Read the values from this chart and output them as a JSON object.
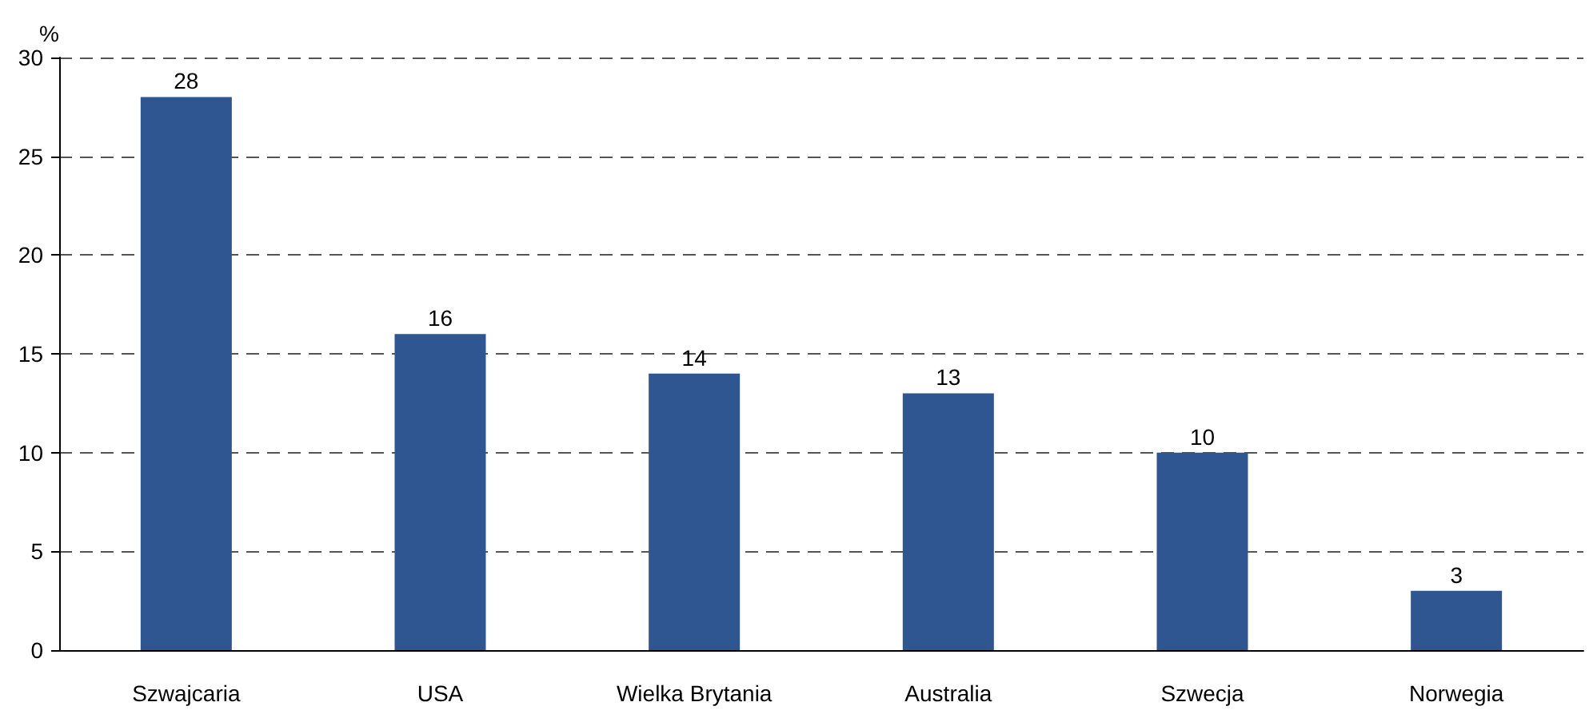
{
  "chart_data": {
    "type": "bar",
    "ylabel": "%",
    "categories": [
      "Szwajcaria",
      "USA",
      "Wielka Brytania",
      "Australia",
      "Szwecja",
      "Norwegia"
    ],
    "values": [
      28,
      16,
      14,
      13,
      10,
      3
    ],
    "color": "#2f5690",
    "ylim": [
      0,
      30
    ],
    "yticks": [
      0,
      5,
      10,
      15,
      20,
      25,
      30
    ],
    "grid": "y",
    "data_labels": true
  }
}
